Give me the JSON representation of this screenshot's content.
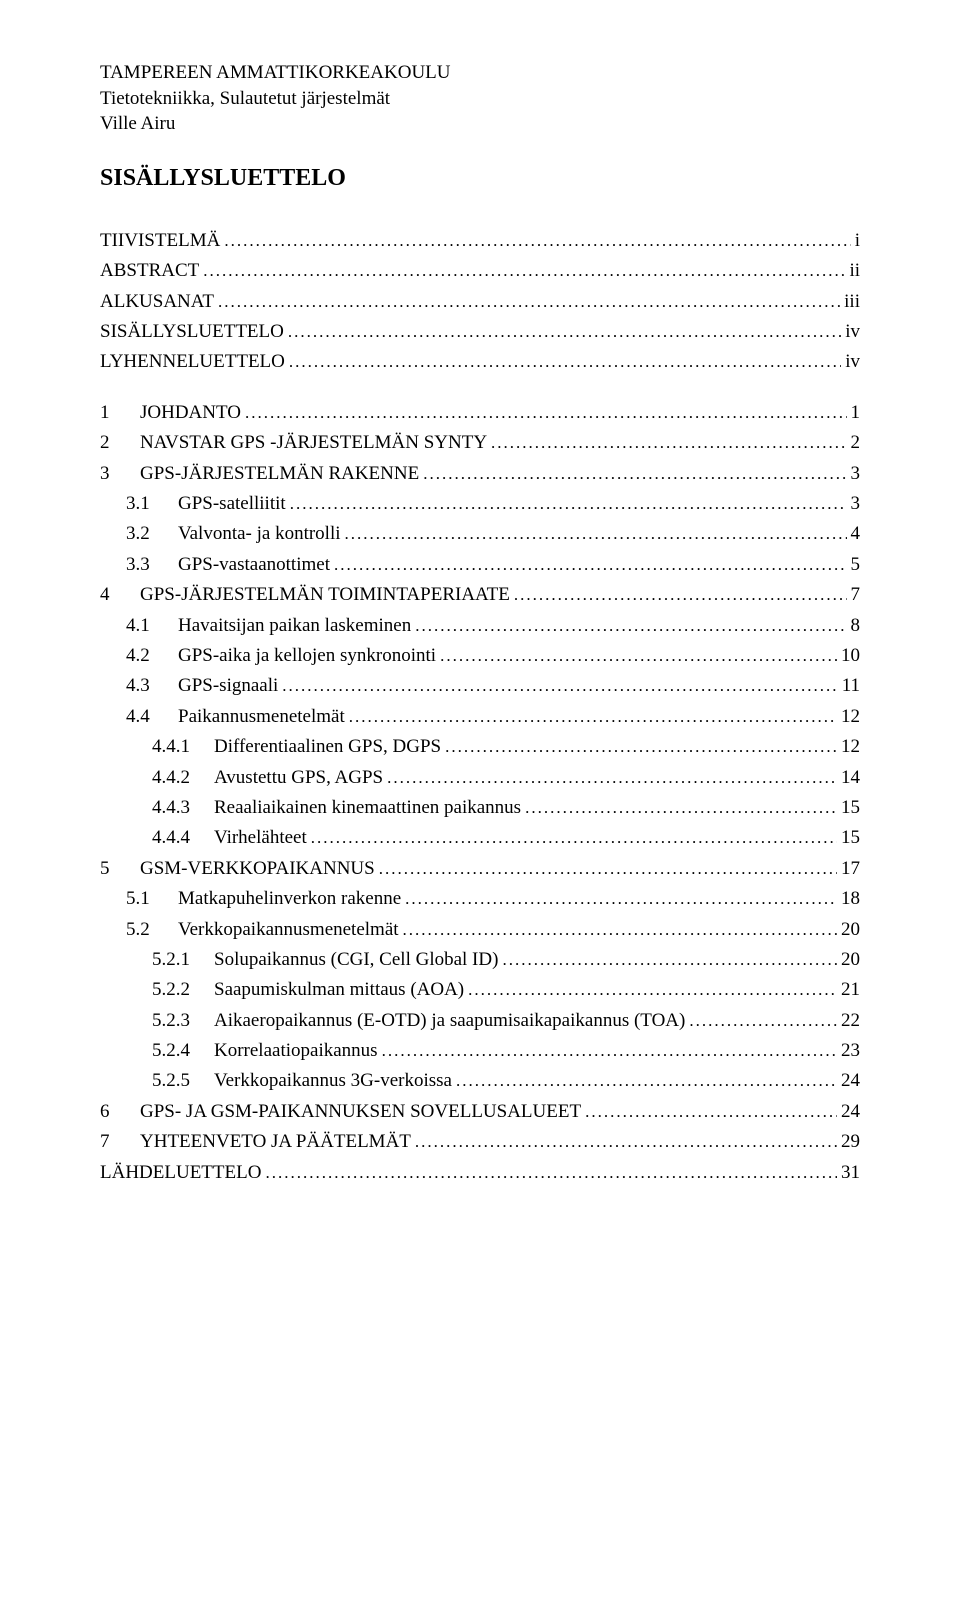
{
  "header": {
    "line1": "TAMPEREEN AMMATTIKORKEAKOULU",
    "line2": "Tietotekniikka, Sulautetut järjestelmät",
    "line3": "Ville Airu"
  },
  "title": "SISÄLLYSLUETTELO",
  "toc": [
    {
      "num": "",
      "label": "TIIVISTELMÄ",
      "page": "i",
      "indent": 0
    },
    {
      "num": "",
      "label": "ABSTRACT",
      "page": "ii",
      "indent": 0
    },
    {
      "num": "",
      "label": "ALKUSANAT",
      "page": "iii",
      "indent": 0
    },
    {
      "num": "",
      "label": "SISÄLLYSLUETTELO",
      "page": "iv",
      "indent": 0
    },
    {
      "num": "",
      "label": "LYHENNELUETTELO",
      "page": "iv",
      "indent": 0
    },
    {
      "spacer": true
    },
    {
      "num": "1",
      "label": "JOHDANTO",
      "page": "1",
      "indent": 0
    },
    {
      "num": "2",
      "label": "NAVSTAR GPS -JÄRJESTELMÄN SYNTY",
      "page": "2",
      "indent": 0
    },
    {
      "num": "3",
      "label": "GPS-JÄRJESTELMÄN RAKENNE",
      "page": "3",
      "indent": 0
    },
    {
      "num": "3.1",
      "label": "GPS-satelliitit",
      "page": "3",
      "indent": 1
    },
    {
      "num": "3.2",
      "label": "Valvonta- ja kontrolli",
      "page": "4",
      "indent": 1
    },
    {
      "num": "3.3",
      "label": "GPS-vastaanottimet",
      "page": "5",
      "indent": 1
    },
    {
      "num": "4",
      "label": "GPS-JÄRJESTELMÄN TOIMINTAPERIAATE",
      "page": "7",
      "indent": 0
    },
    {
      "num": "4.1",
      "label": "Havaitsijan paikan laskeminen",
      "page": "8",
      "indent": 1
    },
    {
      "num": "4.2",
      "label": "GPS-aika ja kellojen synkronointi",
      "page": "10",
      "indent": 1
    },
    {
      "num": "4.3",
      "label": "GPS-signaali",
      "page": "11",
      "indent": 1
    },
    {
      "num": "4.4",
      "label": "Paikannusmenetelmät",
      "page": "12",
      "indent": 1
    },
    {
      "num": "4.4.1",
      "label": "Differentiaalinen GPS, DGPS",
      "page": "12",
      "indent": 2
    },
    {
      "num": "4.4.2",
      "label": "Avustettu GPS, AGPS",
      "page": "14",
      "indent": 2
    },
    {
      "num": "4.4.3",
      "label": "Reaaliaikainen kinemaattinen paikannus",
      "page": "15",
      "indent": 2
    },
    {
      "num": "4.4.4",
      "label": "Virhelähteet",
      "page": "15",
      "indent": 2
    },
    {
      "num": "5",
      "label": "GSM-VERKKOPAIKANNUS",
      "page": "17",
      "indent": 0
    },
    {
      "num": "5.1",
      "label": "Matkapuhelinverkon rakenne",
      "page": "18",
      "indent": 1
    },
    {
      "num": "5.2",
      "label": "Verkkopaikannusmenetelmät",
      "page": "20",
      "indent": 1
    },
    {
      "num": "5.2.1",
      "label": "Solupaikannus (CGI, Cell Global ID)",
      "page": "20",
      "indent": 2
    },
    {
      "num": "5.2.2",
      "label": "Saapumiskulman mittaus (AOA)",
      "page": "21",
      "indent": 2
    },
    {
      "num": "5.2.3",
      "label": "Aikaeropaikannus (E-OTD) ja saapumisaikapaikannus (TOA)",
      "page": "22",
      "indent": 2
    },
    {
      "num": "5.2.4",
      "label": "Korrelaatiopaikannus",
      "page": "23",
      "indent": 2
    },
    {
      "num": "5.2.5",
      "label": "Verkkopaikannus 3G-verkoissa",
      "page": "24",
      "indent": 2
    },
    {
      "num": "6",
      "label": "GPS- JA GSM-PAIKANNUKSEN SOVELLUSALUEET",
      "page": "24",
      "indent": 0
    },
    {
      "num": "7",
      "label": "YHTEENVETO JA PÄÄTELMÄT",
      "page": "29",
      "indent": 0
    },
    {
      "num": "",
      "label": "LÄHDELUETTELO",
      "page": "31",
      "indent": 0
    }
  ]
}
